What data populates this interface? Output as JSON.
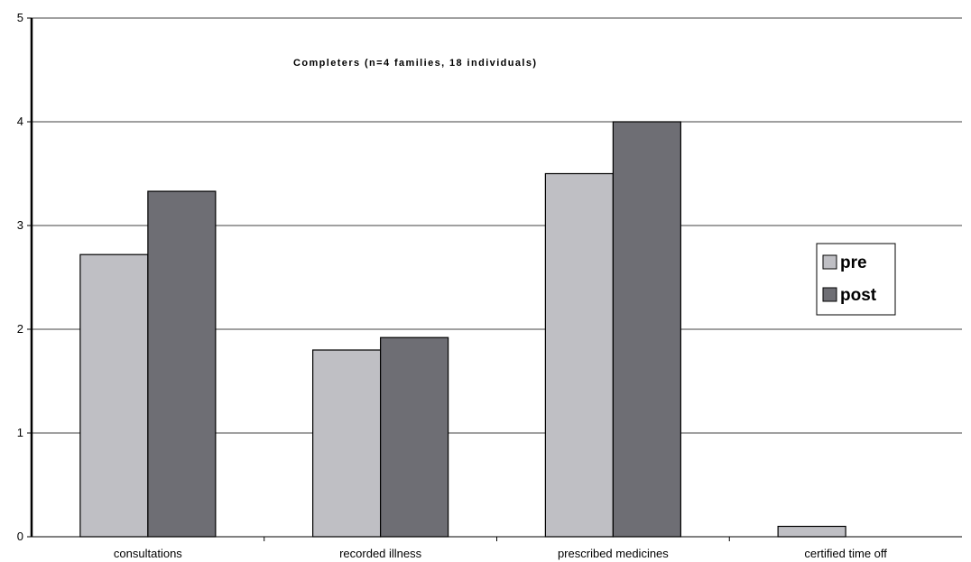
{
  "chart_data": {
    "type": "bar",
    "title": "Completers (n=4 families, 18 individuals)",
    "xlabel": "",
    "ylabel": "",
    "categories": [
      "consultations",
      "recorded illness",
      "prescribed medicines",
      "certified time off"
    ],
    "series": [
      {
        "name": "pre",
        "values": [
          2.72,
          1.8,
          3.5,
          0.1
        ],
        "color": "#bfbfc4"
      },
      {
        "name": "post",
        "values": [
          3.33,
          1.92,
          4.0,
          0
        ],
        "color": "#6e6e74"
      }
    ],
    "ylim": [
      0,
      5
    ],
    "yticks": [
      "0",
      "1",
      "2",
      "3",
      "4",
      "5"
    ],
    "grid": true,
    "legend_position": "right"
  }
}
